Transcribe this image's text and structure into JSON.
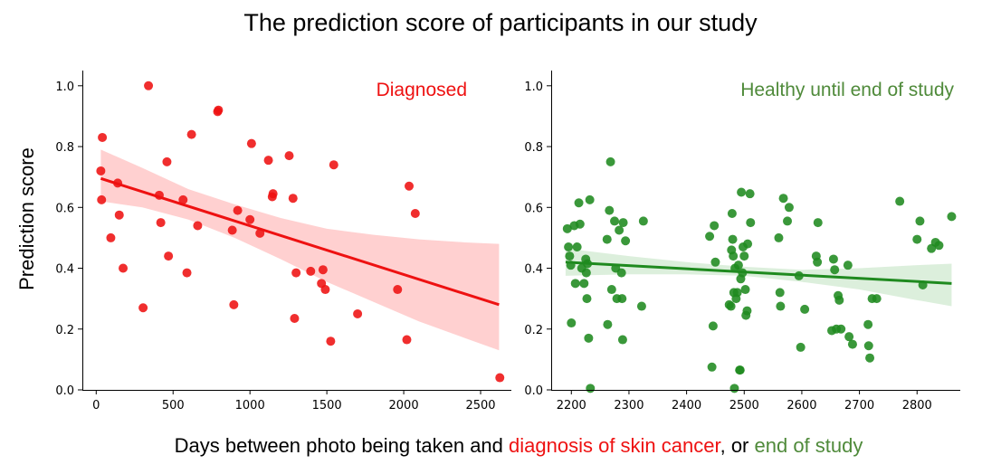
{
  "title": "The prediction score of participants in our study",
  "ylabel": "Prediction score",
  "bottom_label": {
    "part1": "Days between photo being taken and ",
    "part2": "diagnosis of skin cancer",
    "part3": ", or ",
    "part4": "end of study",
    "color_red": "#ee1111",
    "color_green": "#4f8a3a"
  },
  "chart_data": [
    {
      "type": "scatter",
      "label": "Diagnosed",
      "color": "#ee1111",
      "label_color": "#ee1111",
      "band_color": "#ffc8c8",
      "xlim": [
        -90,
        2700
      ],
      "ylim": [
        0,
        1.05
      ],
      "xticks": [
        0,
        500,
        1000,
        1500,
        2000,
        2500
      ],
      "yticks": [
        0.0,
        0.2,
        0.4,
        0.6,
        0.8,
        1.0
      ],
      "regression": {
        "x": [
          30,
          2620
        ],
        "y": [
          0.695,
          0.28
        ]
      },
      "band": {
        "upper": [
          [
            30,
            0.79
          ],
          [
            300,
            0.73
          ],
          [
            600,
            0.66
          ],
          [
            900,
            0.61
          ],
          [
            1200,
            0.565
          ],
          [
            1500,
            0.53
          ],
          [
            1800,
            0.51
          ],
          [
            2100,
            0.495
          ],
          [
            2400,
            0.485
          ],
          [
            2620,
            0.48
          ]
        ],
        "lower": [
          [
            30,
            0.62
          ],
          [
            300,
            0.6
          ],
          [
            600,
            0.56
          ],
          [
            900,
            0.5
          ],
          [
            1200,
            0.43
          ],
          [
            1500,
            0.355
          ],
          [
            1800,
            0.29
          ],
          [
            2100,
            0.225
          ],
          [
            2400,
            0.17
          ],
          [
            2620,
            0.13
          ]
        ]
      },
      "points": [
        [
          30,
          0.72
        ],
        [
          35,
          0.625
        ],
        [
          40,
          0.83
        ],
        [
          95,
          0.5
        ],
        [
          140,
          0.68
        ],
        [
          150,
          0.575
        ],
        [
          175,
          0.4
        ],
        [
          305,
          0.27
        ],
        [
          340,
          1.0
        ],
        [
          410,
          0.64
        ],
        [
          420,
          0.55
        ],
        [
          460,
          0.75
        ],
        [
          470,
          0.44
        ],
        [
          565,
          0.625
        ],
        [
          590,
          0.385
        ],
        [
          620,
          0.84
        ],
        [
          660,
          0.54
        ],
        [
          790,
          0.915
        ],
        [
          795,
          0.92
        ],
        [
          885,
          0.525
        ],
        [
          895,
          0.28
        ],
        [
          920,
          0.59
        ],
        [
          1000,
          0.56
        ],
        [
          1010,
          0.81
        ],
        [
          1065,
          0.515
        ],
        [
          1120,
          0.755
        ],
        [
          1145,
          0.635
        ],
        [
          1150,
          0.645
        ],
        [
          1255,
          0.77
        ],
        [
          1280,
          0.63
        ],
        [
          1290,
          0.235
        ],
        [
          1300,
          0.385
        ],
        [
          1395,
          0.39
        ],
        [
          1465,
          0.35
        ],
        [
          1475,
          0.395
        ],
        [
          1490,
          0.33
        ],
        [
          1525,
          0.16
        ],
        [
          1545,
          0.74
        ],
        [
          1700,
          0.25
        ],
        [
          1960,
          0.33
        ],
        [
          2020,
          0.165
        ],
        [
          2035,
          0.67
        ],
        [
          2075,
          0.58
        ],
        [
          2625,
          0.04
        ]
      ]
    },
    {
      "type": "scatter",
      "label": "Healthy until end of study",
      "color": "#1f8a1f",
      "label_color": "#4f8a3a",
      "band_color": "#d6ecd6",
      "xlim": [
        2165,
        2875
      ],
      "ylim": [
        0,
        1.05
      ],
      "xticks": [
        2200,
        2300,
        2400,
        2500,
        2600,
        2700,
        2800
      ],
      "yticks": [
        0.0,
        0.2,
        0.4,
        0.6,
        0.8,
        1.0
      ],
      "regression": {
        "x": [
          2190,
          2860
        ],
        "y": [
          0.42,
          0.35
        ]
      },
      "band": {
        "upper": [
          [
            2190,
            0.465
          ],
          [
            2300,
            0.44
          ],
          [
            2400,
            0.42
          ],
          [
            2500,
            0.405
          ],
          [
            2600,
            0.395
          ],
          [
            2700,
            0.4
          ],
          [
            2800,
            0.41
          ],
          [
            2860,
            0.415
          ]
        ],
        "lower": [
          [
            2190,
            0.375
          ],
          [
            2300,
            0.38
          ],
          [
            2400,
            0.38
          ],
          [
            2500,
            0.375
          ],
          [
            2600,
            0.355
          ],
          [
            2700,
            0.33
          ],
          [
            2800,
            0.295
          ],
          [
            2860,
            0.275
          ]
        ]
      },
      "points": [
        [
          2193,
          0.53
        ],
        [
          2195,
          0.47
        ],
        [
          2197,
          0.44
        ],
        [
          2199,
          0.41
        ],
        [
          2200,
          0.22
        ],
        [
          2205,
          0.54
        ],
        [
          2207,
          0.35
        ],
        [
          2210,
          0.47
        ],
        [
          2213,
          0.615
        ],
        [
          2215,
          0.545
        ],
        [
          2218,
          0.4
        ],
        [
          2222,
          0.35
        ],
        [
          2225,
          0.43
        ],
        [
          2226,
          0.385
        ],
        [
          2227,
          0.3
        ],
        [
          2228,
          0.415
        ],
        [
          2230,
          0.17
        ],
        [
          2232,
          0.625
        ],
        [
          2233,
          0.005
        ],
        [
          2262,
          0.495
        ],
        [
          2263,
          0.215
        ],
        [
          2266,
          0.59
        ],
        [
          2268,
          0.75
        ],
        [
          2270,
          0.33
        ],
        [
          2275,
          0.555
        ],
        [
          2277,
          0.4
        ],
        [
          2279,
          0.3
        ],
        [
          2283,
          0.525
        ],
        [
          2287,
          0.385
        ],
        [
          2288,
          0.3
        ],
        [
          2289,
          0.165
        ],
        [
          2290,
          0.55
        ],
        [
          2294,
          0.49
        ],
        [
          2322,
          0.275
        ],
        [
          2325,
          0.555
        ],
        [
          2440,
          0.505
        ],
        [
          2444,
          0.075
        ],
        [
          2446,
          0.21
        ],
        [
          2448,
          0.54
        ],
        [
          2450,
          0.42
        ],
        [
          2474,
          0.28
        ],
        [
          2477,
          0.275
        ],
        [
          2478,
          0.46
        ],
        [
          2479,
          0.58
        ],
        [
          2480,
          0.495
        ],
        [
          2481,
          0.44
        ],
        [
          2482,
          0.32
        ],
        [
          2483,
          0.005
        ],
        [
          2484,
          0.4
        ],
        [
          2486,
          0.3
        ],
        [
          2488,
          0.32
        ],
        [
          2490,
          0.41
        ],
        [
          2492,
          0.065
        ],
        [
          2493,
          0.065
        ],
        [
          2494,
          0.365
        ],
        [
          2495,
          0.65
        ],
        [
          2497,
          0.385
        ],
        [
          2498,
          0.47
        ],
        [
          2500,
          0.44
        ],
        [
          2502,
          0.33
        ],
        [
          2503,
          0.245
        ],
        [
          2505,
          0.26
        ],
        [
          2506,
          0.48
        ],
        [
          2510,
          0.645
        ],
        [
          2511,
          0.55
        ],
        [
          2560,
          0.5
        ],
        [
          2562,
          0.32
        ],
        [
          2563,
          0.275
        ],
        [
          2568,
          0.63
        ],
        [
          2575,
          0.555
        ],
        [
          2578,
          0.6
        ],
        [
          2595,
          0.375
        ],
        [
          2598,
          0.14
        ],
        [
          2605,
          0.265
        ],
        [
          2625,
          0.44
        ],
        [
          2627,
          0.42
        ],
        [
          2628,
          0.55
        ],
        [
          2652,
          0.195
        ],
        [
          2655,
          0.43
        ],
        [
          2657,
          0.395
        ],
        [
          2660,
          0.2
        ],
        [
          2663,
          0.31
        ],
        [
          2665,
          0.295
        ],
        [
          2668,
          0.2
        ],
        [
          2680,
          0.41
        ],
        [
          2682,
          0.175
        ],
        [
          2688,
          0.15
        ],
        [
          2715,
          0.215
        ],
        [
          2716,
          0.145
        ],
        [
          2718,
          0.105
        ],
        [
          2722,
          0.3
        ],
        [
          2730,
          0.3
        ],
        [
          2770,
          0.62
        ],
        [
          2800,
          0.495
        ],
        [
          2805,
          0.555
        ],
        [
          2810,
          0.345
        ],
        [
          2825,
          0.465
        ],
        [
          2832,
          0.485
        ],
        [
          2838,
          0.475
        ],
        [
          2860,
          0.57
        ]
      ]
    }
  ]
}
